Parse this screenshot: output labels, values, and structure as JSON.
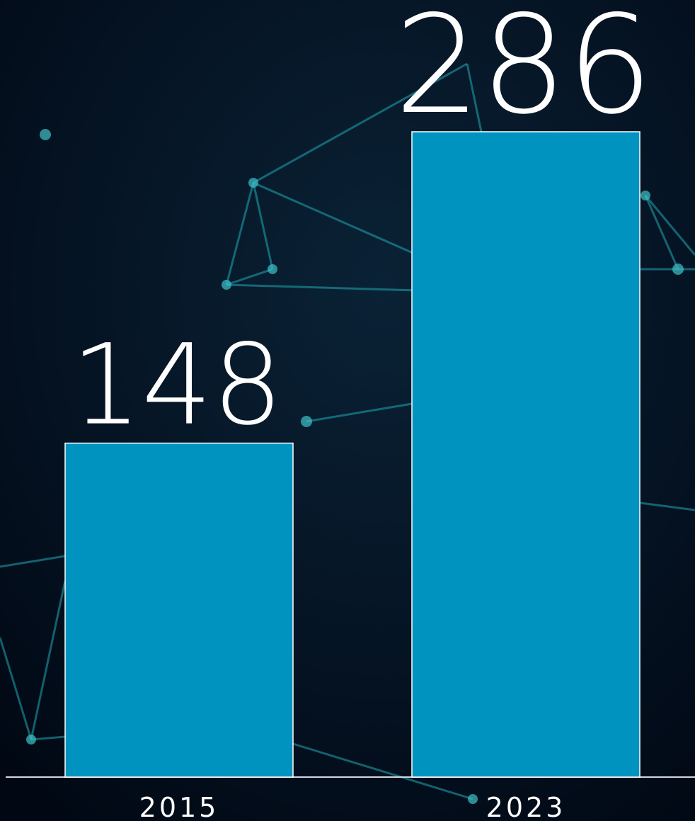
{
  "chart_data": {
    "type": "bar",
    "categories": [
      "2015",
      "2023"
    ],
    "values": [
      148,
      286
    ],
    "color": "#0093c0"
  }
}
